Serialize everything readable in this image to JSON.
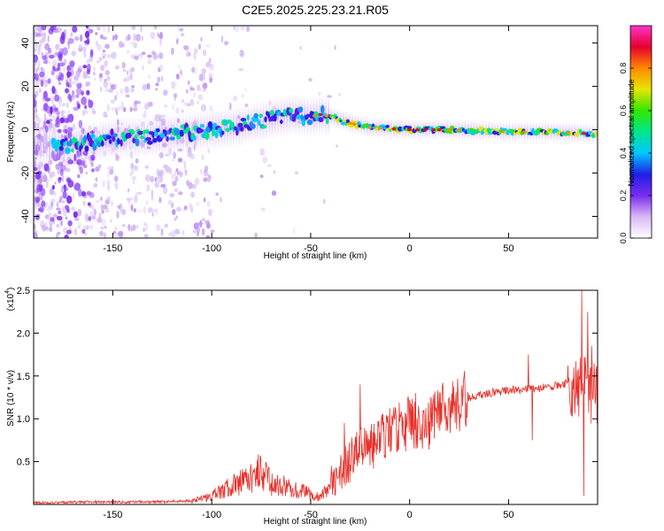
{
  "page_title": "C2E5.2025.225.23.21.R05",
  "chart_data": [
    {
      "type": "heatmap",
      "xlabel": "Height of straight line (km)",
      "ylabel": "Frequency (Hz)",
      "xlim": [
        -190,
        95
      ],
      "ylim": [
        -50,
        48
      ],
      "xticks": [
        -150,
        -100,
        -50,
        0,
        50
      ],
      "yticks": [
        -40,
        -20,
        0,
        20,
        40
      ],
      "colorbar": {
        "label": "Normalized spectral amplitude",
        "range": [
          0,
          1
        ],
        "ticks": [
          0.0,
          0.2,
          0.4,
          0.6,
          0.8
        ],
        "colormap": [
          "#ffffff",
          "#d9b8f5",
          "#7a2cf0",
          "#1f1fe6",
          "#00c8ff",
          "#00e68c",
          "#33e600",
          "#e6e600",
          "#ff8800",
          "#e6002e",
          "#ff33cc"
        ]
      },
      "ridge": [
        {
          "x": -190,
          "y": -7
        },
        {
          "x": -170,
          "y": -7
        },
        {
          "x": -150,
          "y": -4
        },
        {
          "x": -130,
          "y": -3
        },
        {
          "x": -110,
          "y": -1
        },
        {
          "x": -100,
          "y": 0
        },
        {
          "x": -90,
          "y": 1
        },
        {
          "x": -80,
          "y": 3
        },
        {
          "x": -70,
          "y": 5
        },
        {
          "x": -60,
          "y": 7
        },
        {
          "x": -50,
          "y": 6
        },
        {
          "x": -45,
          "y": 7
        },
        {
          "x": -40,
          "y": 6
        },
        {
          "x": -30,
          "y": 3
        },
        {
          "x": -20,
          "y": 1
        },
        {
          "x": 0,
          "y": 0
        },
        {
          "x": 20,
          "y": 0
        },
        {
          "x": 50,
          "y": -1
        },
        {
          "x": 70,
          "y": -1
        },
        {
          "x": 95,
          "y": -2
        }
      ]
    },
    {
      "type": "line",
      "xlabel": "Height of straight line (km)",
      "ylabel": "SNR (10 * v/v)",
      "y_multiplier": "(x10",
      "y_multiplier_exp": "4",
      "y_multiplier_close": ")",
      "xlim": [
        -190,
        95
      ],
      "ylim": [
        0,
        2.5
      ],
      "xticks": [
        -150,
        -100,
        -50,
        0,
        50
      ],
      "yticks": [
        0.5,
        1.0,
        1.5,
        2.0,
        2.5
      ],
      "ytick_labels": [
        "0.5",
        "1.0",
        "1.5",
        "2.0",
        "2.5"
      ],
      "color": "#e8312b",
      "series": [
        {
          "envelope": [
            {
              "x": -190,
              "y": 0.02
            },
            {
              "x": -160,
              "y": 0.03
            },
            {
              "x": -130,
              "y": 0.03
            },
            {
              "x": -110,
              "y": 0.04
            },
            {
              "x": -100,
              "y": 0.1
            },
            {
              "x": -90,
              "y": 0.22
            },
            {
              "x": -80,
              "y": 0.3
            },
            {
              "x": -75,
              "y": 0.4
            },
            {
              "x": -70,
              "y": 0.25
            },
            {
              "x": -60,
              "y": 0.2
            },
            {
              "x": -50,
              "y": 0.12
            },
            {
              "x": -45,
              "y": 0.08
            },
            {
              "x": -40,
              "y": 0.25
            },
            {
              "x": -35,
              "y": 0.35
            },
            {
              "x": -30,
              "y": 0.5
            },
            {
              "x": -25,
              "y": 0.7
            },
            {
              "x": -20,
              "y": 0.65
            },
            {
              "x": -15,
              "y": 0.75
            },
            {
              "x": -10,
              "y": 0.85
            },
            {
              "x": -5,
              "y": 0.9
            },
            {
              "x": 0,
              "y": 0.95
            },
            {
              "x": 5,
              "y": 0.9
            },
            {
              "x": 10,
              "y": 0.95
            },
            {
              "x": 15,
              "y": 1.05
            },
            {
              "x": 20,
              "y": 1.15
            },
            {
              "x": 25,
              "y": 1.2
            },
            {
              "x": 30,
              "y": 1.25
            },
            {
              "x": 40,
              "y": 1.3
            },
            {
              "x": 50,
              "y": 1.33
            },
            {
              "x": 60,
              "y": 1.35
            },
            {
              "x": 70,
              "y": 1.37
            },
            {
              "x": 80,
              "y": 1.42
            },
            {
              "x": 90,
              "y": 1.35
            },
            {
              "x": 95,
              "y": 1.3
            }
          ],
          "spikes": [
            {
              "x": -77,
              "y": 0.52
            },
            {
              "x": -33,
              "y": 0.95
            },
            {
              "x": -25,
              "y": 1.4
            },
            {
              "x": -14,
              "y": 1.05
            },
            {
              "x": 3,
              "y": 1.3
            },
            {
              "x": 12,
              "y": 1.2
            },
            {
              "x": 17,
              "y": 1.3
            },
            {
              "x": 60,
              "y": 1.75
            },
            {
              "x": 62,
              "y": 0.75
            },
            {
              "x": 83,
              "y": 1.6
            },
            {
              "x": 87,
              "y": 2.5
            },
            {
              "x": 88,
              "y": 0.1
            },
            {
              "x": 90,
              "y": 2.25
            },
            {
              "x": 92,
              "y": 1.85
            }
          ]
        }
      ]
    }
  ]
}
